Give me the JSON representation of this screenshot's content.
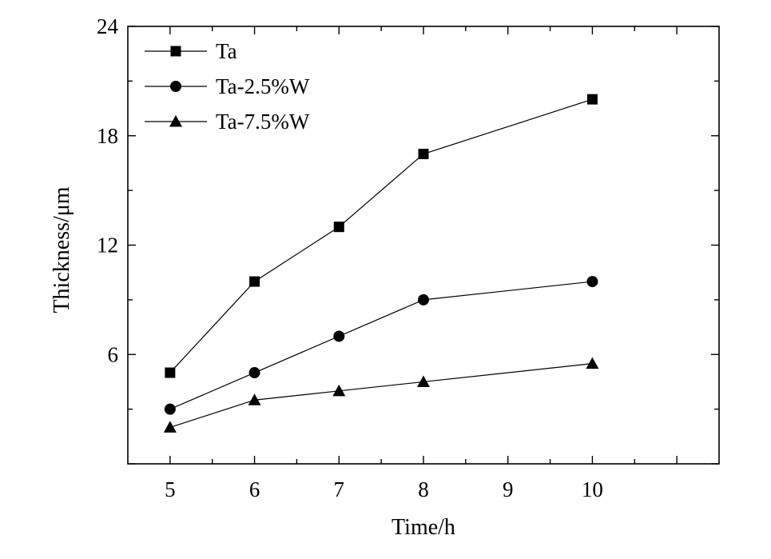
{
  "chart_data": {
    "type": "line",
    "xlabel": "Time/h",
    "ylabel": "Thickness/μm",
    "xlim": [
      4.5,
      11.5
    ],
    "ylim": [
      0,
      24
    ],
    "xticks": [
      5,
      6,
      7,
      8,
      9,
      10
    ],
    "yticks": [
      6,
      12,
      18,
      24
    ],
    "grid": false,
    "legend_position": "top-left",
    "series": [
      {
        "name": "Ta",
        "marker": "square",
        "x": [
          5,
          6,
          7,
          8,
          10
        ],
        "values": [
          5.0,
          10.0,
          13.0,
          17.0,
          20.0
        ]
      },
      {
        "name": "Ta-2.5%W",
        "marker": "circle",
        "x": [
          5,
          6,
          7,
          8,
          10
        ],
        "values": [
          3.0,
          5.0,
          7.0,
          9.0,
          10.0
        ]
      },
      {
        "name": "Ta-7.5%W",
        "marker": "triangle",
        "x": [
          5,
          6,
          7,
          8,
          10
        ],
        "values": [
          2.0,
          3.5,
          4.0,
          4.5,
          5.5
        ]
      }
    ],
    "colors": {
      "line": "#000000",
      "marker": "#000000"
    }
  }
}
